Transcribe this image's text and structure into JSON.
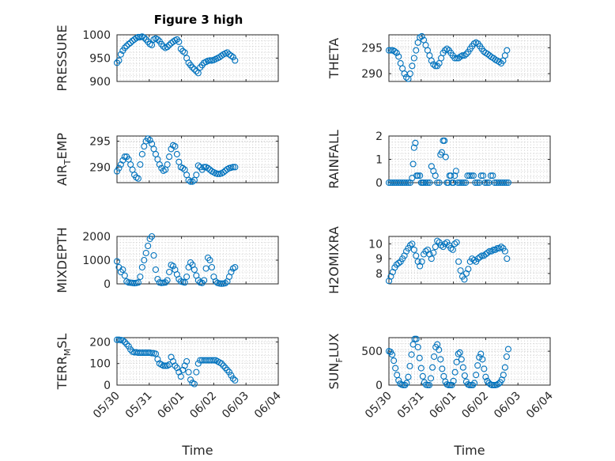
{
  "figure_title": "Figure 3 high",
  "chart_data": [
    {
      "type": "scatter",
      "ylabel": "PRESSURE",
      "ylim": [
        900,
        1000
      ],
      "yticks": [
        900,
        950,
        1000
      ],
      "xlim": [
        0,
        5
      ],
      "xticks": [
        "05/30",
        "05/31",
        "06/01",
        "06/02",
        "06/03",
        "06/04"
      ],
      "grid": true,
      "x": [
        0.0,
        0.06,
        0.12,
        0.18,
        0.24,
        0.3,
        0.36,
        0.42,
        0.48,
        0.54,
        0.6,
        0.66,
        0.72,
        0.78,
        0.84,
        0.9,
        0.96,
        1.02,
        1.08,
        1.14,
        1.2,
        1.26,
        1.32,
        1.38,
        1.44,
        1.5,
        1.56,
        1.62,
        1.68,
        1.74,
        1.8,
        1.86,
        1.92,
        1.98,
        2.04,
        2.1,
        2.16,
        2.22,
        2.28,
        2.34,
        2.4,
        2.46,
        2.52,
        2.58,
        2.64,
        2.7,
        2.76,
        2.82,
        2.88,
        2.94,
        3.0,
        3.06,
        3.12,
        3.18,
        3.24,
        3.3,
        3.36,
        3.42,
        3.48,
        3.54,
        3.6,
        3.66
      ],
      "y": [
        940,
        945,
        958,
        966,
        972,
        976,
        980,
        983,
        987,
        990,
        993,
        995,
        995,
        996,
        994,
        990,
        985,
        980,
        978,
        990,
        992,
        990,
        986,
        980,
        975,
        972,
        974,
        978,
        982,
        985,
        988,
        990,
        985,
        970,
        965,
        962,
        950,
        940,
        935,
        930,
        926,
        922,
        918,
        930,
        935,
        940,
        942,
        944,
        945,
        945,
        946,
        948,
        950,
        952,
        955,
        958,
        960,
        962,
        958,
        955,
        952,
        945
      ]
    },
    {
      "type": "scatter",
      "ylabel": "THETA",
      "ylim": [
        288.5,
        297.5
      ],
      "yticks": [
        290,
        295
      ],
      "xlim": [
        0,
        5
      ],
      "xticks": [
        "05/30",
        "05/31",
        "06/01",
        "06/02",
        "06/03",
        "06/04"
      ],
      "grid": true,
      "x": [
        0.0,
        0.06,
        0.12,
        0.18,
        0.24,
        0.3,
        0.36,
        0.42,
        0.48,
        0.54,
        0.6,
        0.66,
        0.72,
        0.78,
        0.84,
        0.9,
        0.96,
        1.02,
        1.08,
        1.14,
        1.2,
        1.26,
        1.32,
        1.38,
        1.44,
        1.5,
        1.56,
        1.62,
        1.68,
        1.74,
        1.8,
        1.86,
        1.92,
        1.98,
        2.04,
        2.1,
        2.16,
        2.22,
        2.28,
        2.34,
        2.4,
        2.46,
        2.52,
        2.58,
        2.64,
        2.7,
        2.76,
        2.82,
        2.88,
        2.94,
        3.0,
        3.06,
        3.12,
        3.18,
        3.24,
        3.3,
        3.36,
        3.42,
        3.48,
        3.54,
        3.6,
        3.66
      ],
      "y": [
        294.5,
        294.5,
        294.5,
        294.3,
        294,
        293.3,
        292,
        291,
        290,
        289.3,
        289,
        290,
        291.5,
        293,
        294.5,
        296,
        297,
        297.2,
        296.5,
        295.5,
        294.5,
        293.5,
        292.5,
        291.8,
        291.5,
        291.5,
        292,
        293,
        294,
        294.5,
        294.8,
        294.5,
        294,
        293.5,
        293,
        293,
        293,
        293.3,
        293.5,
        293.5,
        293.8,
        294.2,
        294.8,
        295.3,
        295.8,
        296,
        295.8,
        295.3,
        294.8,
        294.3,
        294,
        293.8,
        293.5,
        293.2,
        293,
        292.7,
        292.5,
        292.3,
        292,
        292.5,
        293.5,
        294.5
      ]
    },
    {
      "type": "scatter",
      "ylabel": "AIR_TEMP",
      "ylim": [
        287,
        296
      ],
      "yticks": [
        290,
        295
      ],
      "xlim": [
        0,
        5
      ],
      "xticks": [
        "05/30",
        "05/31",
        "06/01",
        "06/02",
        "06/03",
        "06/04"
      ],
      "grid": true,
      "x": [
        0.0,
        0.06,
        0.12,
        0.18,
        0.24,
        0.3,
        0.36,
        0.42,
        0.48,
        0.54,
        0.6,
        0.66,
        0.72,
        0.78,
        0.84,
        0.9,
        0.96,
        1.02,
        1.08,
        1.14,
        1.2,
        1.26,
        1.32,
        1.38,
        1.44,
        1.5,
        1.56,
        1.62,
        1.68,
        1.74,
        1.8,
        1.86,
        1.92,
        1.98,
        2.04,
        2.1,
        2.16,
        2.22,
        2.28,
        2.34,
        2.4,
        2.46,
        2.52,
        2.58,
        2.64,
        2.7,
        2.76,
        2.82,
        2.88,
        2.94,
        3.0,
        3.06,
        3.12,
        3.18,
        3.24,
        3.3,
        3.36,
        3.42,
        3.48,
        3.54,
        3.6,
        3.66
      ],
      "y": [
        289.2,
        289.8,
        290.5,
        291.3,
        292,
        292,
        291.5,
        290.5,
        289.5,
        288.5,
        288,
        287.8,
        290.5,
        292.5,
        294,
        295,
        295.5,
        295.2,
        294.5,
        293.5,
        292.5,
        291.5,
        290.5,
        289.8,
        289.3,
        289.5,
        290.5,
        292,
        293.5,
        294.2,
        294,
        292.5,
        291,
        290,
        289.8,
        289.5,
        288.5,
        287.5,
        287.2,
        287.2,
        287.5,
        288.5,
        290.3,
        290,
        289.5,
        290,
        290,
        289.8,
        289.5,
        289.2,
        289,
        288.8,
        288.7,
        288.7,
        288.8,
        289,
        289.3,
        289.6,
        289.8,
        289.9,
        290,
        290
      ]
    },
    {
      "type": "scatter",
      "ylabel": "RAINFALL",
      "ylim": [
        0,
        2
      ],
      "yticks": [
        0,
        1,
        2
      ],
      "xlim": [
        0,
        5
      ],
      "xticks": [
        "05/30",
        "05/31",
        "06/01",
        "06/02",
        "06/03",
        "06/04"
      ],
      "grid": true,
      "x": [
        0.0,
        0.06,
        0.12,
        0.18,
        0.24,
        0.3,
        0.36,
        0.42,
        0.48,
        0.54,
        0.6,
        0.66,
        0.72,
        0.75,
        0.78,
        0.82,
        0.86,
        0.9,
        0.96,
        1.0,
        1.04,
        1.08,
        1.14,
        1.2,
        1.26,
        1.32,
        1.38,
        1.44,
        1.5,
        1.56,
        1.6,
        1.64,
        1.68,
        1.72,
        1.76,
        1.8,
        1.84,
        1.88,
        1.92,
        1.96,
        2.0,
        2.04,
        2.08,
        2.14,
        2.2,
        2.26,
        2.32,
        2.38,
        2.44,
        2.5,
        2.56,
        2.62,
        2.68,
        2.74,
        2.8,
        2.86,
        2.92,
        2.98,
        3.04,
        3.1,
        3.16,
        3.22,
        3.28,
        3.34,
        3.4,
        3.46,
        3.52,
        3.58,
        3.64,
        3.7
      ],
      "y": [
        0,
        0,
        0,
        0,
        0,
        0,
        0,
        0,
        0,
        0,
        0,
        0,
        0.2,
        0.8,
        1.5,
        1.7,
        0.3,
        0.3,
        0.3,
        0,
        0,
        0,
        0,
        0,
        0,
        0.7,
        0.5,
        0.3,
        0,
        0,
        1.2,
        1.3,
        1.8,
        1.8,
        1.1,
        0,
        0,
        0.3,
        0.3,
        0,
        0,
        0.3,
        0.5,
        0,
        0,
        0,
        0,
        0,
        0.3,
        0.3,
        0.3,
        0.3,
        0,
        0,
        0,
        0.3,
        0.3,
        0,
        0,
        0,
        0.3,
        0.3,
        0,
        0,
        0,
        0,
        0,
        0,
        0,
        0
      ]
    },
    {
      "type": "scatter",
      "ylabel": "MIXDEPTH",
      "ylim": [
        0,
        2000
      ],
      "yticks": [
        0,
        1000,
        2000
      ],
      "xlim": [
        0,
        5
      ],
      "xticks": [
        "05/30",
        "05/31",
        "06/01",
        "06/02",
        "06/03",
        "06/04"
      ],
      "grid": true,
      "x": [
        0.0,
        0.06,
        0.12,
        0.18,
        0.24,
        0.3,
        0.36,
        0.42,
        0.48,
        0.54,
        0.6,
        0.66,
        0.72,
        0.78,
        0.84,
        0.9,
        0.96,
        1.02,
        1.08,
        1.14,
        1.2,
        1.26,
        1.32,
        1.38,
        1.44,
        1.5,
        1.56,
        1.62,
        1.68,
        1.74,
        1.8,
        1.86,
        1.92,
        1.98,
        2.04,
        2.1,
        2.16,
        2.22,
        2.28,
        2.34,
        2.4,
        2.46,
        2.52,
        2.58,
        2.64,
        2.7,
        2.76,
        2.82,
        2.88,
        2.94,
        3.0,
        3.06,
        3.12,
        3.18,
        3.24,
        3.3,
        3.36,
        3.42,
        3.48,
        3.54,
        3.6,
        3.66
      ],
      "y": [
        950,
        700,
        500,
        600,
        350,
        100,
        60,
        50,
        40,
        30,
        40,
        60,
        300,
        700,
        1000,
        1300,
        1600,
        1900,
        2000,
        1200,
        600,
        200,
        60,
        40,
        50,
        60,
        150,
        500,
        800,
        750,
        600,
        400,
        200,
        100,
        80,
        60,
        300,
        700,
        900,
        800,
        600,
        350,
        150,
        60,
        40,
        150,
        650,
        1100,
        1000,
        700,
        300,
        100,
        40,
        20,
        10,
        15,
        30,
        100,
        300,
        500,
        650,
        700
      ]
    },
    {
      "type": "scatter",
      "ylabel": "H2OMIXRA",
      "ylim": [
        7.3,
        10.5
      ],
      "yticks": [
        8,
        9,
        10
      ],
      "xlim": [
        0,
        5
      ],
      "xticks": [
        "05/30",
        "05/31",
        "06/01",
        "06/02",
        "06/03",
        "06/04"
      ],
      "grid": true,
      "x": [
        0.0,
        0.06,
        0.12,
        0.18,
        0.24,
        0.3,
        0.36,
        0.42,
        0.48,
        0.54,
        0.6,
        0.66,
        0.72,
        0.78,
        0.84,
        0.9,
        0.96,
        1.02,
        1.08,
        1.14,
        1.2,
        1.26,
        1.32,
        1.38,
        1.44,
        1.5,
        1.56,
        1.62,
        1.68,
        1.74,
        1.8,
        1.86,
        1.92,
        1.98,
        2.04,
        2.1,
        2.16,
        2.22,
        2.28,
        2.34,
        2.4,
        2.46,
        2.52,
        2.58,
        2.64,
        2.7,
        2.76,
        2.82,
        2.88,
        2.94,
        3.0,
        3.06,
        3.12,
        3.18,
        3.24,
        3.3,
        3.36,
        3.42,
        3.48,
        3.54,
        3.6,
        3.66
      ],
      "y": [
        7.5,
        7.8,
        8.1,
        8.4,
        8.6,
        8.7,
        8.8,
        9.0,
        9.2,
        9.5,
        9.7,
        9.9,
        10.0,
        9.6,
        9.2,
        8.8,
        8.5,
        8.8,
        9.3,
        9.5,
        9.6,
        9.3,
        9.0,
        9.4,
        9.8,
        10.2,
        10.1,
        9.9,
        9.8,
        10.0,
        10.1,
        9.9,
        9.7,
        9.6,
        10.0,
        10.1,
        8.8,
        8.2,
        7.8,
        7.6,
        8.0,
        8.3,
        8.8,
        9.0,
        8.9,
        8.8,
        9.0,
        9.1,
        9.2,
        9.2,
        9.3,
        9.4,
        9.5,
        9.5,
        9.6,
        9.6,
        9.7,
        9.7,
        9.8,
        9.7,
        9.5,
        9.0
      ]
    },
    {
      "type": "scatter",
      "ylabel": "TERR_MSL",
      "ylim": [
        0,
        220
      ],
      "yticks": [
        0,
        100,
        200
      ],
      "xlim": [
        0,
        5
      ],
      "xticks": [
        "05/30",
        "05/31",
        "06/01",
        "06/02",
        "06/03",
        "06/04"
      ],
      "grid": true,
      "x": [
        0.0,
        0.06,
        0.12,
        0.18,
        0.24,
        0.3,
        0.36,
        0.42,
        0.48,
        0.54,
        0.6,
        0.66,
        0.72,
        0.78,
        0.84,
        0.9,
        0.96,
        1.02,
        1.08,
        1.14,
        1.2,
        1.26,
        1.32,
        1.38,
        1.44,
        1.5,
        1.56,
        1.62,
        1.68,
        1.74,
        1.8,
        1.86,
        1.92,
        1.98,
        2.04,
        2.1,
        2.16,
        2.22,
        2.28,
        2.34,
        2.4,
        2.46,
        2.52,
        2.58,
        2.64,
        2.7,
        2.76,
        2.82,
        2.88,
        2.94,
        3.0,
        3.06,
        3.12,
        3.18,
        3.24,
        3.3,
        3.36,
        3.42,
        3.48,
        3.54,
        3.6,
        3.66
      ],
      "y": [
        210,
        210,
        209,
        207,
        200,
        190,
        180,
        165,
        155,
        152,
        152,
        150,
        150,
        150,
        150,
        150,
        150,
        150,
        148,
        148,
        145,
        120,
        100,
        95,
        90,
        90,
        90,
        95,
        130,
        110,
        90,
        80,
        60,
        40,
        70,
        90,
        110,
        60,
        25,
        10,
        5,
        60,
        100,
        115,
        115,
        115,
        115,
        115,
        115,
        115,
        115,
        115,
        110,
        105,
        100,
        90,
        80,
        70,
        60,
        45,
        30,
        22
      ]
    },
    {
      "type": "scatter",
      "ylabel": "SUN_FLUX",
      "ylim": [
        0,
        700
      ],
      "yticks": [
        0,
        500
      ],
      "xlim": [
        0,
        5
      ],
      "xticks": [
        "05/30",
        "05/31",
        "06/01",
        "06/02",
        "06/03",
        "06/04"
      ],
      "grid": true,
      "x": [
        0.0,
        0.05,
        0.1,
        0.15,
        0.2,
        0.25,
        0.3,
        0.35,
        0.4,
        0.45,
        0.5,
        0.55,
        0.6,
        0.65,
        0.7,
        0.75,
        0.8,
        0.85,
        0.9,
        0.95,
        1.0,
        1.05,
        1.1,
        1.15,
        1.2,
        1.25,
        1.3,
        1.35,
        1.4,
        1.45,
        1.5,
        1.55,
        1.6,
        1.65,
        1.7,
        1.75,
        1.8,
        1.85,
        1.9,
        1.95,
        2.0,
        2.05,
        2.1,
        2.15,
        2.2,
        2.25,
        2.3,
        2.35,
        2.4,
        2.45,
        2.5,
        2.55,
        2.6,
        2.65,
        2.7,
        2.75,
        2.8,
        2.85,
        2.9,
        2.95,
        3.0,
        3.05,
        3.1,
        3.15,
        3.2,
        3.25,
        3.3,
        3.35,
        3.4,
        3.45,
        3.5,
        3.55,
        3.6,
        3.65,
        3.7
      ],
      "y": [
        500,
        490,
        450,
        360,
        250,
        150,
        70,
        20,
        5,
        0,
        0,
        30,
        120,
        280,
        450,
        600,
        680,
        680,
        560,
        400,
        250,
        130,
        40,
        5,
        0,
        0,
        100,
        260,
        420,
        560,
        600,
        520,
        380,
        240,
        130,
        50,
        10,
        0,
        0,
        0,
        60,
        190,
        340,
        460,
        480,
        380,
        260,
        140,
        50,
        10,
        0,
        0,
        0,
        30,
        150,
        290,
        410,
        460,
        380,
        240,
        120,
        60,
        30,
        10,
        0,
        0,
        0,
        5,
        20,
        40,
        80,
        150,
        260,
        420,
        530
      ]
    }
  ],
  "xlabel": "Time"
}
